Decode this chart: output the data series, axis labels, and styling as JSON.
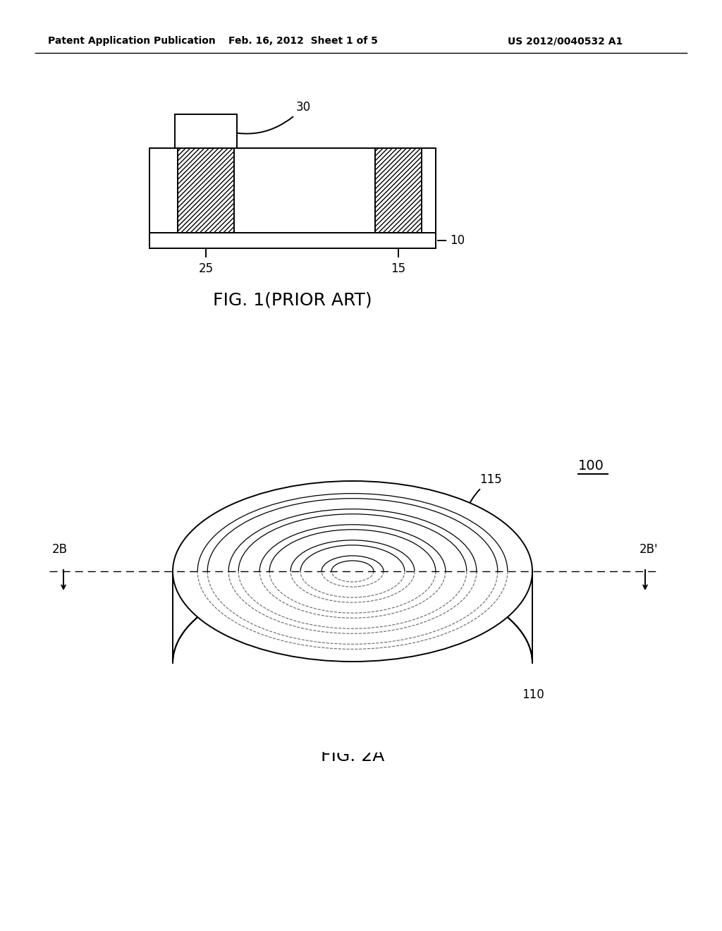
{
  "bg_color": "#ffffff",
  "header_left": "Patent Application Publication",
  "header_mid": "Feb. 16, 2012  Sheet 1 of 5",
  "header_right": "US 2012/0040532 A1",
  "fig1_title": "FIG. 1(PRIOR ART)",
  "fig2_title": "FIG. 2A",
  "label_30": "30",
  "label_10": "10",
  "label_25": "25",
  "label_15": "15",
  "label_100": "100",
  "label_115": "115",
  "label_110": "110",
  "label_2B": "2B",
  "label_2B_prime": "2B'",
  "line_color": "#000000"
}
